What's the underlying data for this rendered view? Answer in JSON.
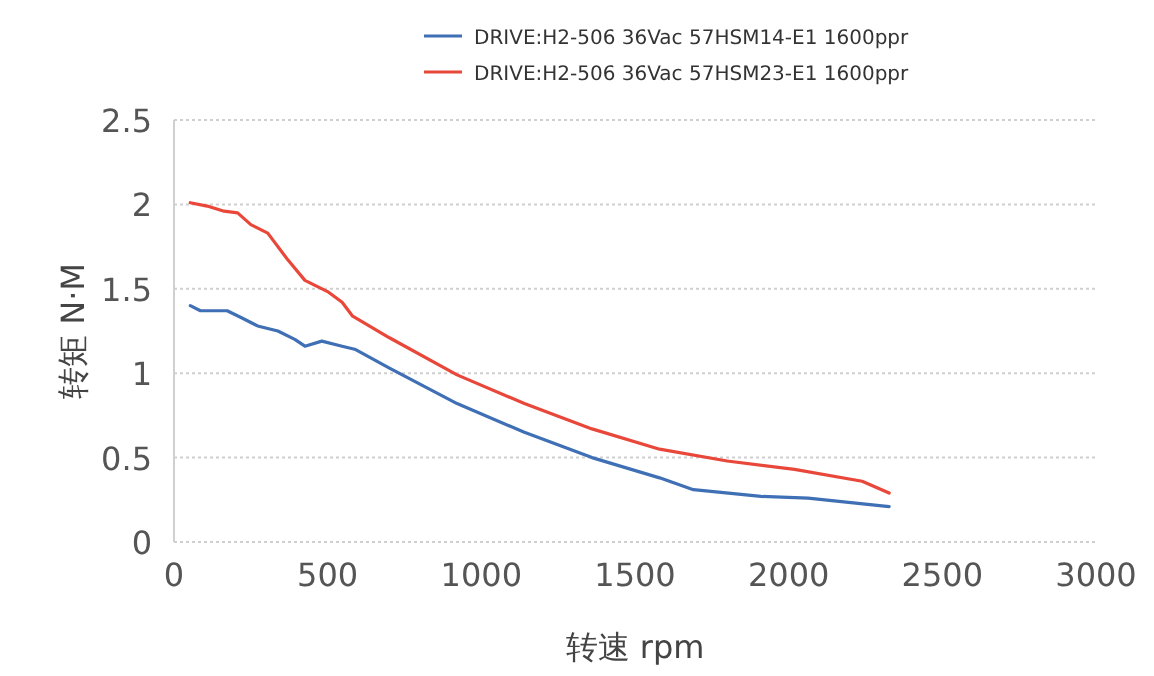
{
  "chart_data": {
    "type": "line",
    "xlabel": "转速 rpm",
    "ylabel": "转矩 N·M",
    "xlim": [
      0,
      3000
    ],
    "xticks": [
      0,
      500,
      1000,
      1500,
      2000,
      2500,
      3000
    ],
    "ylim": [
      0,
      2.5
    ],
    "yticks": [
      0,
      0.5,
      1,
      1.5,
      2,
      2.5
    ],
    "grid": "y",
    "legend": "top",
    "marker": "none",
    "line_style": "solid",
    "series": [
      {
        "name": "DRIVE:H2-506 36Vac 57HSM14-E1 1600ppr",
        "color": "#3f6fb5",
        "x": [
          53,
          86,
          173,
          218,
          272,
          338,
          393,
          426,
          481,
          547,
          591,
          701,
          921,
          1140,
          1360,
          1580,
          1690,
          1910,
          2063,
          2327
        ],
        "values": [
          1.4,
          1.37,
          1.37,
          1.33,
          1.28,
          1.25,
          1.2,
          1.16,
          1.19,
          1.16,
          1.14,
          1.03,
          0.82,
          0.65,
          0.5,
          0.38,
          0.31,
          0.27,
          0.26,
          0.21
        ]
      },
      {
        "name": "DRIVE:H2-506 36Vac 57HSM23-E1 1600ppr",
        "color": "#e8473a",
        "x": [
          53,
          108,
          163,
          207,
          250,
          305,
          371,
          426,
          503,
          547,
          580,
          701,
          921,
          1140,
          1360,
          1580,
          1800,
          2019,
          2239,
          2327
        ],
        "values": [
          2.01,
          1.99,
          1.96,
          1.95,
          1.88,
          1.83,
          1.67,
          1.55,
          1.48,
          1.42,
          1.34,
          1.21,
          0.99,
          0.82,
          0.67,
          0.55,
          0.48,
          0.43,
          0.36,
          0.29
        ]
      }
    ]
  }
}
